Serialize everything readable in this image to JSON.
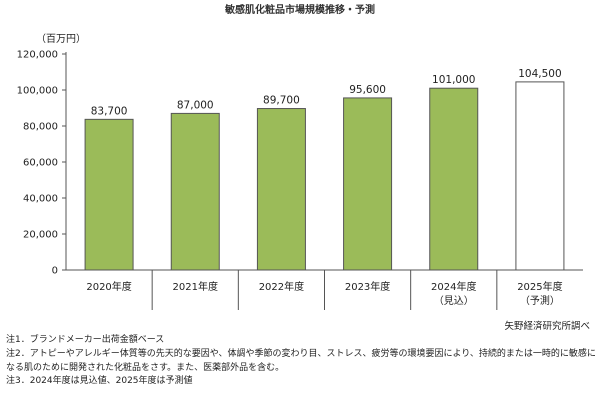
{
  "title": "敏感肌化粧品市場規模推移・予測",
  "chart_data": {
    "type": "bar",
    "unit_label": "（百万円）",
    "categories": [
      "2020年度",
      "2021年度",
      "2022年度",
      "2023年度",
      "2024年度",
      "2025年度"
    ],
    "sublabels": [
      "",
      "",
      "",
      "",
      "（見込）",
      "（予測）"
    ],
    "values": [
      83700,
      87000,
      89700,
      95600,
      101000,
      104500
    ],
    "value_labels": [
      "83,700",
      "87,000",
      "89,700",
      "95,600",
      "101,000",
      "104,500"
    ],
    "styles": [
      "actual",
      "actual",
      "actual",
      "actual",
      "actual",
      "forecast"
    ],
    "ylim": [
      0,
      120000
    ],
    "yticks": [
      0,
      20000,
      40000,
      60000,
      80000,
      100000,
      120000
    ],
    "ytick_labels": [
      "0",
      "20,000",
      "40,000",
      "60,000",
      "80,000",
      "100,000",
      "120,000"
    ],
    "colors": {
      "actual": "#9bbb59",
      "forecast": "#ffffff",
      "edge": "#555555"
    },
    "grid": false,
    "legend": "none"
  },
  "source": "矢野経済研究所調べ",
  "notes": [
    "注1．ブランドメーカー出荷金額ベース",
    "注2．アトピーやアレルギー体質等の先天的な要因や、体調や季節の変わり目、ストレス、疲労等の環境要因により、持続的または一時的に敏感になる肌のために開発された化粧品をさす。また、医薬部外品を含む。",
    "注3．2024年度は見込値、2025年度は予測値"
  ]
}
